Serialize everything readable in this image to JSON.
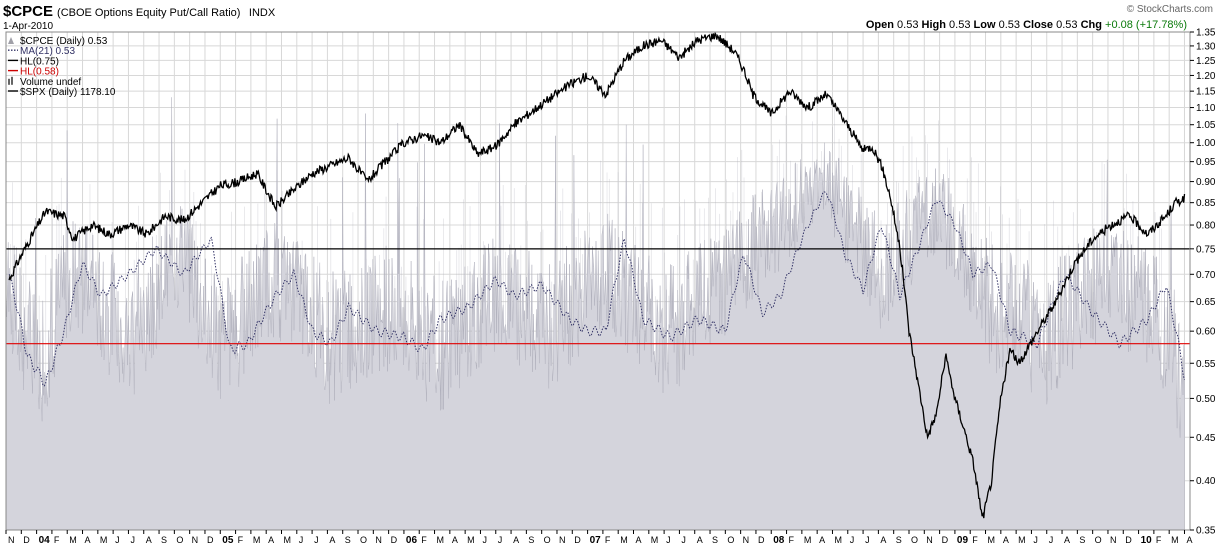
{
  "header": {
    "symbol": "$CPCE",
    "description": "(CBOE Options Equity Put/Call Ratio)",
    "exchange": "INDX",
    "date": "1-Apr-2010",
    "open_label": "Open",
    "open": "0.53",
    "high_label": "High",
    "high": "0.53",
    "low_label": "Low",
    "low": "0.53",
    "close_label": "Close",
    "close": "0.53",
    "chg_label": "Chg",
    "chg": "+0.08 (+17.78%)",
    "logo": "© StockCharts.com"
  },
  "legend": [
    {
      "label": "$CPCE (Daily) 0.53",
      "color": "#a0a0a8",
      "style": "area"
    },
    {
      "label": "MA(21) 0.53",
      "color": "#333366",
      "style": "dotted"
    },
    {
      "label": "HL(0.75)",
      "color": "#000000",
      "style": "solid"
    },
    {
      "label": "HL(0.58)",
      "color": "#cc0000",
      "style": "solid"
    },
    {
      "label": "Volume undef",
      "color": "#666666",
      "style": "bars"
    },
    {
      "label": "$SPX (Daily) 1178.10",
      "color": "#000000",
      "style": "solid"
    }
  ],
  "colors": {
    "cpce_fill": "#d4d4dc",
    "cpce_line": "#b0b0bc",
    "ma_line": "#333366",
    "hl_075": "#000000",
    "hl_058": "#e00000",
    "spx_line": "#000000",
    "grid": "#d8d8d8"
  },
  "chart_data": {
    "type": "line",
    "y_axis": {
      "scale": "log",
      "ylim": [
        0.35,
        1.35
      ],
      "side": "right",
      "ticks": [
        "0.35",
        "0.40",
        "0.45",
        "0.50",
        "0.55",
        "0.60",
        "0.65",
        "0.70",
        "0.75",
        "0.80",
        "0.85",
        "0.90",
        "0.95",
        "1.00",
        "1.05",
        "1.10",
        "1.15",
        "1.20",
        "1.25",
        "1.30",
        "1.35"
      ]
    },
    "x_axis": {
      "range": [
        "2003-11",
        "2010-04"
      ],
      "ticks": [
        "N",
        "D",
        "04",
        "F",
        "M",
        "A",
        "M",
        "J",
        "J",
        "A",
        "S",
        "O",
        "N",
        "D",
        "05",
        "F",
        "M",
        "A",
        "M",
        "J",
        "J",
        "A",
        "S",
        "O",
        "N",
        "D",
        "06",
        "F",
        "M",
        "A",
        "M",
        "J",
        "J",
        "A",
        "S",
        "O",
        "N",
        "D",
        "07",
        "F",
        "M",
        "A",
        "M",
        "J",
        "J",
        "A",
        "S",
        "O",
        "N",
        "D",
        "08",
        "F",
        "M",
        "A",
        "M",
        "J",
        "J",
        "A",
        "S",
        "O",
        "N",
        "D",
        "09",
        "F",
        "M",
        "A",
        "M",
        "J",
        "J",
        "A",
        "S",
        "O",
        "N",
        "D",
        "10",
        "F",
        "M",
        "A"
      ],
      "year_ticks": [
        "04",
        "05",
        "06",
        "07",
        "08",
        "09",
        "10"
      ]
    },
    "grid": true,
    "legend_position": "top-left",
    "horizontal_lines": [
      {
        "name": "HL(0.75)",
        "value": 0.75
      },
      {
        "name": "HL(0.58)",
        "value": 0.58
      }
    ],
    "series": [
      {
        "name": "$CPCE (Daily) 0.53",
        "kind": "area",
        "x": [
          2003.85,
          2004.0,
          2004.2,
          2004.5,
          2004.8,
          2005.0,
          2005.3,
          2005.6,
          2005.9,
          2006.2,
          2006.5,
          2006.8,
          2007.1,
          2007.4,
          2007.7,
          2008.0,
          2008.3,
          2008.6,
          2008.9,
          2009.2,
          2009.5,
          2009.8,
          2010.1,
          2010.25
        ],
        "values": [
          0.68,
          0.55,
          0.72,
          0.6,
          0.75,
          0.58,
          0.7,
          0.6,
          0.65,
          0.58,
          0.68,
          0.62,
          0.72,
          0.6,
          0.68,
          0.8,
          0.9,
          0.7,
          0.85,
          0.65,
          0.6,
          0.7,
          0.65,
          0.53
        ]
      },
      {
        "name": "MA(21) 0.53",
        "kind": "dotted",
        "x": [
          2003.85,
          2003.95,
          2004.05,
          2004.15,
          2004.25,
          2004.35,
          2004.5,
          2004.65,
          2004.8,
          2004.95,
          2005.05,
          2005.15,
          2005.3,
          2005.4,
          2005.5,
          2005.6,
          2005.7,
          2005.85,
          2006.0,
          2006.1,
          2006.2,
          2006.35,
          2006.5,
          2006.6,
          2006.75,
          2006.9,
          2007.0,
          2007.1,
          2007.2,
          2007.3,
          2007.45,
          2007.6,
          2007.75,
          2007.85,
          2007.95,
          2008.05,
          2008.2,
          2008.3,
          2008.4,
          2008.5,
          2008.6,
          2008.7,
          2008.8,
          2008.9,
          2009.0,
          2009.1,
          2009.2,
          2009.3,
          2009.45,
          2009.6,
          2009.75,
          2009.9,
          2010.05,
          2010.15,
          2010.25
        ],
        "values": [
          0.7,
          0.56,
          0.52,
          0.6,
          0.72,
          0.66,
          0.7,
          0.75,
          0.7,
          0.77,
          0.57,
          0.58,
          0.66,
          0.7,
          0.6,
          0.58,
          0.64,
          0.6,
          0.59,
          0.57,
          0.62,
          0.64,
          0.69,
          0.66,
          0.68,
          0.62,
          0.6,
          0.6,
          0.77,
          0.62,
          0.59,
          0.62,
          0.6,
          0.74,
          0.63,
          0.66,
          0.8,
          0.88,
          0.74,
          0.67,
          0.8,
          0.66,
          0.75,
          0.86,
          0.8,
          0.7,
          0.72,
          0.6,
          0.58,
          0.7,
          0.63,
          0.58,
          0.62,
          0.68,
          0.53
        ]
      },
      {
        "name": "$SPX (Daily) 1178.10",
        "kind": "line",
        "y_scale": "overlay",
        "x": [
          2003.85,
          2003.95,
          2004.05,
          2004.15,
          2004.2,
          2004.3,
          2004.4,
          2004.5,
          2004.6,
          2004.7,
          2004.8,
          2004.9,
          2005.0,
          2005.1,
          2005.2,
          2005.3,
          2005.4,
          2005.5,
          2005.6,
          2005.7,
          2005.8,
          2005.9,
          2006.0,
          2006.1,
          2006.2,
          2006.3,
          2006.4,
          2006.5,
          2006.6,
          2006.7,
          2006.8,
          2006.9,
          2007.0,
          2007.1,
          2007.2,
          2007.3,
          2007.4,
          2007.5,
          2007.6,
          2007.7,
          2007.8,
          2007.85,
          2007.9,
          2008.0,
          2008.1,
          2008.2,
          2008.3,
          2008.4,
          2008.5,
          2008.55,
          2008.6,
          2008.65,
          2008.7,
          2008.75,
          2008.8,
          2008.85,
          2008.9,
          2008.95,
          2009.0,
          2009.05,
          2009.1,
          2009.15,
          2009.2,
          2009.25,
          2009.3,
          2009.35,
          2009.45,
          2009.55,
          2009.65,
          2009.75,
          2009.85,
          2009.95,
          2010.05,
          2010.1,
          2010.15,
          2010.2,
          2010.25
        ],
        "values": [
          0.69,
          0.76,
          0.83,
          0.82,
          0.77,
          0.8,
          0.78,
          0.8,
          0.78,
          0.82,
          0.81,
          0.85,
          0.89,
          0.9,
          0.92,
          0.84,
          0.88,
          0.92,
          0.94,
          0.96,
          0.9,
          0.95,
          1.0,
          1.02,
          1.0,
          1.05,
          0.97,
          0.99,
          1.05,
          1.09,
          1.13,
          1.17,
          1.2,
          1.14,
          1.25,
          1.3,
          1.32,
          1.26,
          1.32,
          1.34,
          1.28,
          1.22,
          1.14,
          1.08,
          1.15,
          1.1,
          1.14,
          1.06,
          0.98,
          0.99,
          0.94,
          0.86,
          0.75,
          0.6,
          0.52,
          0.45,
          0.48,
          0.56,
          0.5,
          0.46,
          0.42,
          0.36,
          0.4,
          0.5,
          0.57,
          0.55,
          0.6,
          0.65,
          0.72,
          0.77,
          0.8,
          0.82,
          0.78,
          0.8,
          0.82,
          0.85,
          0.86
        ]
      }
    ]
  }
}
